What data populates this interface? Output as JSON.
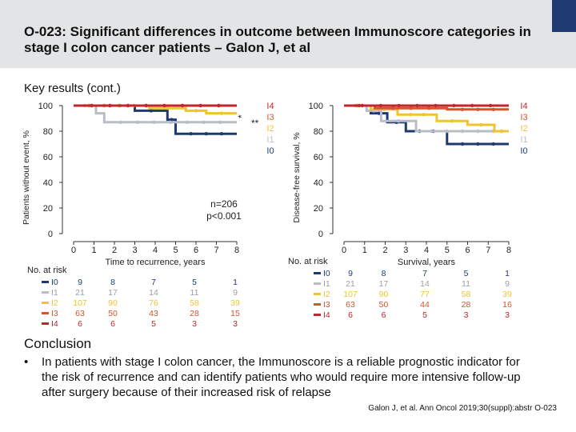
{
  "slide": {
    "title": "O-023: Significant differences in outcome between Immunoscore categories in stage I colon cancer patients – Galon J, et al",
    "subtitle": "Key results (cont.)",
    "conclusion_heading": "Conclusion",
    "conclusion_bullet": "In patients with stage I colon cancer, the Immunoscore is a reliable prognostic indicator for the risk of recurrence and can identify patients who would require more intensive follow-up after surgery because of their increased risk of relapse",
    "reference": "Galon J, et al. Ann Oncol 2019;30(suppl):abstr O-023"
  },
  "chart_data": [
    {
      "type": "line",
      "subtype": "kaplan-meier-step",
      "ylabel": "Patients without event, %",
      "xlabel": "Time to recurrence, years",
      "xlim": [
        0,
        8
      ],
      "ylim": [
        0,
        100
      ],
      "xticks": [
        "0",
        "1",
        "2",
        "3",
        "4",
        "5",
        "6",
        "7",
        "8"
      ],
      "yticks": [
        "0",
        "20",
        "40",
        "60",
        "80",
        "100"
      ],
      "annotation": "n=206\np<0.001",
      "significance_marks": [
        "*",
        "**"
      ],
      "series": [
        {
          "name": "I4",
          "color": "#c0262d",
          "points": [
            [
              0,
              100
            ],
            [
              8,
              100
            ]
          ]
        },
        {
          "name": "I3",
          "color": "#d9532b",
          "points": [
            [
              0,
              100
            ],
            [
              8,
              100
            ]
          ]
        },
        {
          "name": "I2",
          "color": "#f0c431",
          "points": [
            [
              0,
              100
            ],
            [
              3.7,
              100
            ],
            [
              3.7,
              98
            ],
            [
              5.5,
              98
            ],
            [
              5.5,
              96
            ],
            [
              6.5,
              96
            ],
            [
              6.5,
              94
            ],
            [
              8,
              94
            ]
          ]
        },
        {
          "name": "I1",
          "color": "#b9bec6",
          "points": [
            [
              0,
              100
            ],
            [
              1.1,
              100
            ],
            [
              1.1,
              94
            ],
            [
              1.5,
              94
            ],
            [
              1.5,
              87
            ],
            [
              8,
              87
            ]
          ]
        },
        {
          "name": "I0",
          "color": "#1f3a73",
          "points": [
            [
              0,
              100
            ],
            [
              3,
              100
            ],
            [
              3,
              96
            ],
            [
              4.6,
              96
            ],
            [
              4.6,
              89
            ],
            [
              5,
              89
            ],
            [
              5,
              78
            ],
            [
              8,
              78
            ]
          ]
        }
      ],
      "at_risk": {
        "label": "No. at risk",
        "times": [
          "0",
          "2",
          "4",
          "6",
          "8"
        ],
        "rows": [
          {
            "name": "I0",
            "values": [
              "9",
              "8",
              "7",
              "5",
              "1"
            ]
          },
          {
            "name": "I1",
            "values": [
              "21",
              "17",
              "14",
              "11",
              "9"
            ]
          },
          {
            "name": "I2",
            "values": [
              "107",
              "90",
              "76",
              "58",
              "39"
            ]
          },
          {
            "name": "I3",
            "values": [
              "63",
              "50",
              "43",
              "28",
              "15"
            ]
          },
          {
            "name": "I4",
            "values": [
              "6",
              "6",
              "5",
              "3",
              "3"
            ]
          }
        ]
      }
    },
    {
      "type": "line",
      "subtype": "kaplan-meier-step",
      "ylabel": "Disease-free survival, %",
      "xlabel": "Survival, years",
      "xlim": [
        0,
        8
      ],
      "ylim": [
        0,
        100
      ],
      "xticks": [
        "0",
        "1",
        "2",
        "3",
        "4",
        "5",
        "6",
        "7",
        "8"
      ],
      "yticks": [
        "0",
        "20",
        "40",
        "60",
        "80",
        "100"
      ],
      "series": [
        {
          "name": "I4",
          "color": "#c0262d",
          "points": [
            [
              0,
              100
            ],
            [
              8,
              100
            ]
          ]
        },
        {
          "name": "I3",
          "color": "#d9532b",
          "points": [
            [
              0,
              100
            ],
            [
              1.5,
              100
            ],
            [
              1.5,
              98
            ],
            [
              5,
              98
            ],
            [
              5,
              97
            ],
            [
              8,
              97
            ]
          ]
        },
        {
          "name": "I2",
          "color": "#f0c431",
          "points": [
            [
              0,
              100
            ],
            [
              1.3,
              100
            ],
            [
              1.3,
              97
            ],
            [
              2.6,
              97
            ],
            [
              2.6,
              93
            ],
            [
              4.5,
              93
            ],
            [
              4.5,
              88
            ],
            [
              6,
              88
            ],
            [
              6,
              85
            ],
            [
              7.3,
              85
            ],
            [
              7.3,
              80
            ],
            [
              8,
              80
            ]
          ]
        },
        {
          "name": "I1",
          "color": "#b9bec6",
          "points": [
            [
              0,
              100
            ],
            [
              1.1,
              100
            ],
            [
              1.1,
              96
            ],
            [
              1.8,
              96
            ],
            [
              1.8,
              88
            ],
            [
              3.5,
              88
            ],
            [
              3.5,
              80
            ],
            [
              8,
              80
            ]
          ]
        },
        {
          "name": "I0",
          "color": "#1f3a73",
          "points": [
            [
              0,
              100
            ],
            [
              1.3,
              100
            ],
            [
              1.3,
              94
            ],
            [
              2.1,
              94
            ],
            [
              2.1,
              87
            ],
            [
              3,
              87
            ],
            [
              3,
              80
            ],
            [
              5,
              80
            ],
            [
              5,
              70
            ],
            [
              8,
              70
            ]
          ]
        }
      ],
      "at_risk": {
        "label": "No. at risk",
        "times": [
          "0",
          "2",
          "4",
          "6",
          "8"
        ],
        "rows": [
          {
            "name": "I0",
            "values": [
              "9",
              "8",
              "7",
              "5",
              "1"
            ]
          },
          {
            "name": "I1",
            "values": [
              "21",
              "17",
              "14",
              "11",
              "9"
            ]
          },
          {
            "name": "I2",
            "values": [
              "107",
              "90",
              "77",
              "58",
              "39"
            ]
          },
          {
            "name": "I3",
            "values": [
              "63",
              "50",
              "44",
              "28",
              "16"
            ]
          },
          {
            "name": "I4",
            "values": [
              "6",
              "6",
              "5",
              "3",
              "3"
            ]
          }
        ]
      }
    }
  ]
}
